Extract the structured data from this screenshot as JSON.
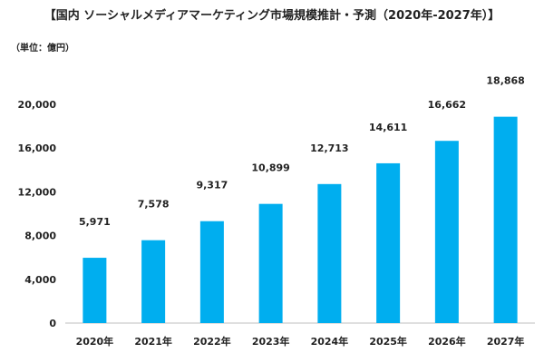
{
  "chart_data": {
    "type": "bar",
    "title": "【国内 ソーシャルメディアマーケティング市場規模推計・予測（2020年-2027年）】",
    "unit_label": "（単位：億円）",
    "categories": [
      "2020年",
      "2021年",
      "2022年",
      "2023年",
      "2024年",
      "2025年",
      "2026年",
      "2027年"
    ],
    "values": [
      5971,
      7578,
      9317,
      10899,
      12713,
      14611,
      16662,
      18868
    ],
    "data_labels": [
      "5,971",
      "7,578",
      "9,317",
      "10,899",
      "12,713",
      "14,611",
      "16,662",
      "18,868"
    ],
    "yticks": [
      0,
      4000,
      8000,
      12000,
      16000,
      20000
    ],
    "ytick_labels": [
      "0",
      "4,000",
      "8,000",
      "12,000",
      "16,000",
      "20,000"
    ],
    "ylim": [
      0,
      20000
    ],
    "grid": false,
    "bar_color": "#00AEEF"
  }
}
